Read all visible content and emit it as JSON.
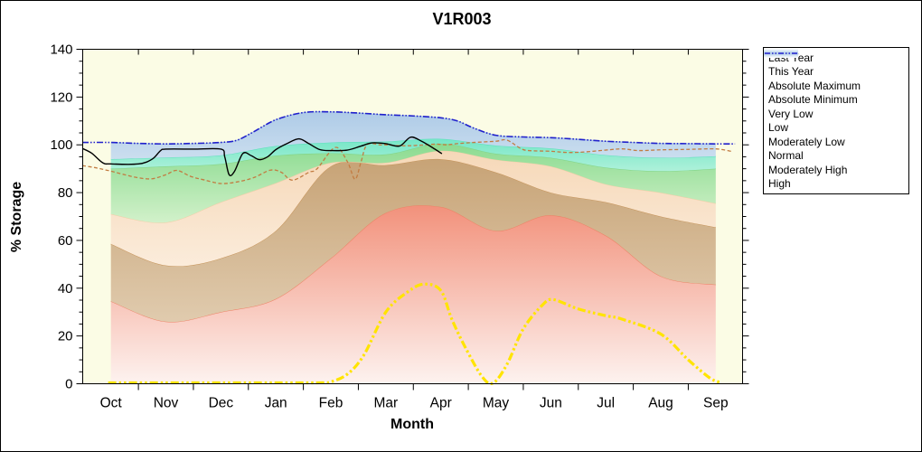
{
  "chart_data": {
    "type": "area",
    "title": "V1R003",
    "xlabel": "Month",
    "ylabel": "% Storage",
    "ylim": [
      0,
      140
    ],
    "ytick_major": 20,
    "ytick_minor": 5,
    "grid": false,
    "legend_position": "outside-top-right",
    "months": [
      "Oct",
      "Nov",
      "Dec",
      "Jan",
      "Feb",
      "Mar",
      "Apr",
      "May",
      "Jun",
      "Jul",
      "Aug",
      "Sep"
    ],
    "plot_bg": "#fbfce5",
    "band_boundaries": {
      "zero": {
        "v": [
          0.2,
          0.2,
          0.2,
          0.2,
          0.2,
          0.2,
          0.2,
          0.2,
          0.2,
          0.2,
          0.2,
          0.2
        ]
      },
      "very_low_top": {
        "v": [
          34.5,
          26,
          30,
          35.5,
          52.5,
          71.5,
          74,
          64,
          70.5,
          62,
          45,
          41.5
        ]
      },
      "low_top": {
        "v": [
          58.5,
          49.5,
          52.5,
          64,
          91,
          91.5,
          94,
          88.5,
          80,
          76,
          70,
          65.5
        ]
      },
      "mod_low_top": {
        "v": [
          71,
          67.5,
          76,
          84,
          92.5,
          92.5,
          97.5,
          93.8,
          91,
          83.5,
          80,
          75.5
        ]
      },
      "normal_top": {
        "v": [
          90,
          91,
          92,
          95.5,
          96.5,
          96,
          100.5,
          96.3,
          94.6,
          90.5,
          89,
          90
        ]
      },
      "mod_high_top": {
        "v": [
          94,
          94.7,
          95.6,
          99.5,
          101,
          101.4,
          102.5,
          99.7,
          98.5,
          95.7,
          94.6,
          95.2
        ]
      },
      "high_top": {
        "x": [
          0,
          1,
          2,
          2.3,
          2.6,
          3,
          3.5,
          4,
          4.5,
          5,
          5.5,
          6,
          6.3,
          6.6,
          7,
          7.5,
          8,
          8.5,
          9,
          9.5,
          10,
          10.5,
          11
        ],
        "v": [
          101,
          100.4,
          101,
          102,
          105.5,
          110.5,
          113.5,
          113.8,
          113.3,
          112.6,
          112.1,
          111.3,
          110,
          107,
          104,
          103.3,
          103,
          102.3,
          101.5,
          101,
          100.6,
          100.5,
          100.4
        ]
      }
    },
    "bands": [
      {
        "name": "Very Low",
        "lower": "zero",
        "upper": "very_low_top",
        "color_top": "#f2917b",
        "color_bottom": "#fdf2ef",
        "edge": "#ee8064"
      },
      {
        "name": "Low",
        "lower": "very_low_top",
        "upper": "low_top",
        "color_top": "#c7a376",
        "color_bottom": "#e0cbae",
        "edge": "#c6945a"
      },
      {
        "name": "Moderately Low",
        "lower": "low_top",
        "upper": "mod_low_top",
        "color_top": "#f6d8b8",
        "color_bottom": "#fbecdb",
        "edge": "#f2cda6"
      },
      {
        "name": "Normal",
        "lower": "mod_low_top",
        "upper": "normal_top",
        "color_top": "#8bdb90",
        "color_bottom": "#d2f1ca",
        "edge": "#7fd385"
      },
      {
        "name": "Moderately High",
        "lower": "normal_top",
        "upper": "mod_high_top",
        "color_top": "#74e6c6",
        "color_bottom": "#aef1da",
        "edge": "#5ce0bd"
      },
      {
        "name": "High",
        "lower": "mod_high_top",
        "upper": "high_top",
        "color_top": "#aecbe7",
        "color_bottom": "#cbdeef",
        "edge": "#a6c6e4"
      }
    ],
    "series": [
      {
        "name": "Last Year",
        "color": "#c27c42",
        "width": 1.3,
        "dash": "4 2.5",
        "points": [
          [
            -0.52,
            91.3
          ],
          [
            -0.3,
            90.5
          ],
          [
            -0.1,
            89.5
          ],
          [
            0,
            89
          ],
          [
            0.25,
            87.5
          ],
          [
            0.5,
            86.2
          ],
          [
            0.75,
            85.8
          ],
          [
            1,
            87.5
          ],
          [
            1.2,
            89.3
          ],
          [
            1.45,
            86.8
          ],
          [
            1.7,
            85.3
          ],
          [
            2,
            83.8
          ],
          [
            2.3,
            84.5
          ],
          [
            2.6,
            86.3
          ],
          [
            2.9,
            89.4
          ],
          [
            3.1,
            88.5
          ],
          [
            3.3,
            85.2
          ],
          [
            3.6,
            88.5
          ],
          [
            3.75,
            90
          ],
          [
            4.08,
            98.9
          ],
          [
            4.3,
            93
          ],
          [
            4.44,
            85.6
          ],
          [
            4.55,
            93
          ],
          [
            4.66,
            100.1
          ],
          [
            4.9,
            100
          ],
          [
            5,
            100
          ],
          [
            5.3,
            99.6
          ],
          [
            5.6,
            99.8
          ],
          [
            5.9,
            100.3
          ],
          [
            6.1,
            100
          ],
          [
            6.3,
            100.5
          ],
          [
            6.6,
            101
          ],
          [
            7,
            101.5
          ],
          [
            7.2,
            102
          ],
          [
            7.45,
            98.5
          ],
          [
            7.6,
            97.6
          ],
          [
            8,
            97.3
          ],
          [
            8.3,
            96.8
          ],
          [
            8.6,
            97
          ],
          [
            9,
            97.8
          ],
          [
            9.3,
            98.3
          ],
          [
            9.6,
            97.6
          ],
          [
            10,
            97.9
          ],
          [
            10.5,
            98.1
          ],
          [
            11,
            98.3
          ],
          [
            11.3,
            97.2
          ]
        ]
      },
      {
        "name": "This Year",
        "color": "#000000",
        "width": 1.4,
        "dash": null,
        "points": [
          [
            -0.52,
            98.5
          ],
          [
            -0.35,
            96.5
          ],
          [
            -0.15,
            92.5
          ],
          [
            0,
            92
          ],
          [
            0.5,
            92
          ],
          [
            0.75,
            94
          ],
          [
            0.9,
            97.5
          ],
          [
            1,
            98.2
          ],
          [
            1.5,
            98.2
          ],
          [
            2,
            98.2
          ],
          [
            2.07,
            95
          ],
          [
            2.15,
            87.5
          ],
          [
            2.25,
            89
          ],
          [
            2.4,
            96.4
          ],
          [
            2.55,
            95.5
          ],
          [
            2.7,
            93.8
          ],
          [
            2.85,
            95
          ],
          [
            3,
            98
          ],
          [
            3.2,
            100.5
          ],
          [
            3.42,
            102.5
          ],
          [
            3.6,
            100.5
          ],
          [
            3.8,
            98
          ],
          [
            4,
            97.6
          ],
          [
            4.3,
            97.8
          ],
          [
            4.55,
            99.5
          ],
          [
            4.75,
            100.8
          ],
          [
            5,
            100.5
          ],
          [
            5.25,
            99.5
          ],
          [
            5.45,
            103.2
          ],
          [
            5.65,
            101.5
          ],
          [
            5.85,
            98.8
          ],
          [
            6.02,
            96.3
          ]
        ]
      },
      {
        "name": "Absolute Maximum",
        "color": "#2020cc",
        "width": 1.6,
        "dash": "7 2 1.5 2 1.5 2",
        "points": [
          [
            -0.52,
            101
          ],
          [
            0,
            101
          ],
          [
            0.5,
            100.6
          ],
          [
            1,
            100.4
          ],
          [
            1.5,
            100.6
          ],
          [
            2,
            101
          ],
          [
            2.3,
            102
          ],
          [
            2.6,
            105.5
          ],
          [
            3,
            110.5
          ],
          [
            3.5,
            113.5
          ],
          [
            4,
            113.8
          ],
          [
            4.5,
            113.3
          ],
          [
            5,
            112.6
          ],
          [
            5.5,
            112.1
          ],
          [
            6,
            111.3
          ],
          [
            6.3,
            110
          ],
          [
            6.6,
            107
          ],
          [
            7,
            104
          ],
          [
            7.5,
            103.3
          ],
          [
            8,
            103
          ],
          [
            8.5,
            102.3
          ],
          [
            9,
            101.5
          ],
          [
            9.5,
            101
          ],
          [
            10,
            100.6
          ],
          [
            10.5,
            100.5
          ],
          [
            11,
            100.4
          ],
          [
            11.35,
            100.4
          ]
        ]
      },
      {
        "name": "Absolute Minimum",
        "color": "#ffe400",
        "width": 3.2,
        "dash": "9 3 2.5 3 2.5 3",
        "points": [
          [
            -0.05,
            0.4
          ],
          [
            1,
            0.4
          ],
          [
            2,
            0.4
          ],
          [
            3,
            0.4
          ],
          [
            3.8,
            0.4
          ],
          [
            4,
            0.8
          ],
          [
            4.3,
            4
          ],
          [
            4.6,
            12
          ],
          [
            5,
            30
          ],
          [
            5.4,
            38.5
          ],
          [
            5.7,
            41.7
          ],
          [
            6,
            39
          ],
          [
            6.2,
            27
          ],
          [
            6.45,
            15
          ],
          [
            6.75,
            3
          ],
          [
            6.95,
            0.3
          ],
          [
            7.2,
            8
          ],
          [
            7.5,
            23
          ],
          [
            7.85,
            33
          ],
          [
            8.05,
            35.2
          ],
          [
            8.5,
            31.3
          ],
          [
            9,
            28.5
          ],
          [
            9.3,
            27
          ],
          [
            10,
            20.8
          ],
          [
            10.5,
            10
          ],
          [
            10.9,
            2.3
          ],
          [
            11.1,
            0.5
          ]
        ]
      }
    ]
  },
  "legend": {
    "items": [
      {
        "label": "Last Year",
        "type": "line",
        "color": "#c27c42",
        "width": 1.3,
        "dash": "4 2.5"
      },
      {
        "label": "This Year",
        "type": "line",
        "color": "#000000",
        "width": 1.3,
        "dash": null
      },
      {
        "label": "Absolute Maximum",
        "type": "line",
        "color": "#2020cc",
        "width": 1.6,
        "dash": "6 2 1.5 2 1.5 2"
      },
      {
        "label": "Absolute Minimum",
        "type": "line",
        "color": "#ffe400",
        "width": 3.2,
        "dash": "7 2.5 2 2.5 2 2.5"
      },
      {
        "label": "Very Low",
        "type": "band",
        "color": "#f2917b"
      },
      {
        "label": "Low",
        "type": "band",
        "color": "#c7a376"
      },
      {
        "label": "Moderately Low",
        "type": "band",
        "color": "#f6d8b8"
      },
      {
        "label": "Normal",
        "type": "band",
        "color": "#8bdb90"
      },
      {
        "label": "Moderately High",
        "type": "band",
        "color": "#74e6c6"
      },
      {
        "label": "High",
        "type": "band",
        "color": "#aecbe7",
        "overlay_line": {
          "color": "#2020cc",
          "width": 1.4,
          "dash": "6 2 1.5 2 1.5 2"
        }
      }
    ]
  }
}
